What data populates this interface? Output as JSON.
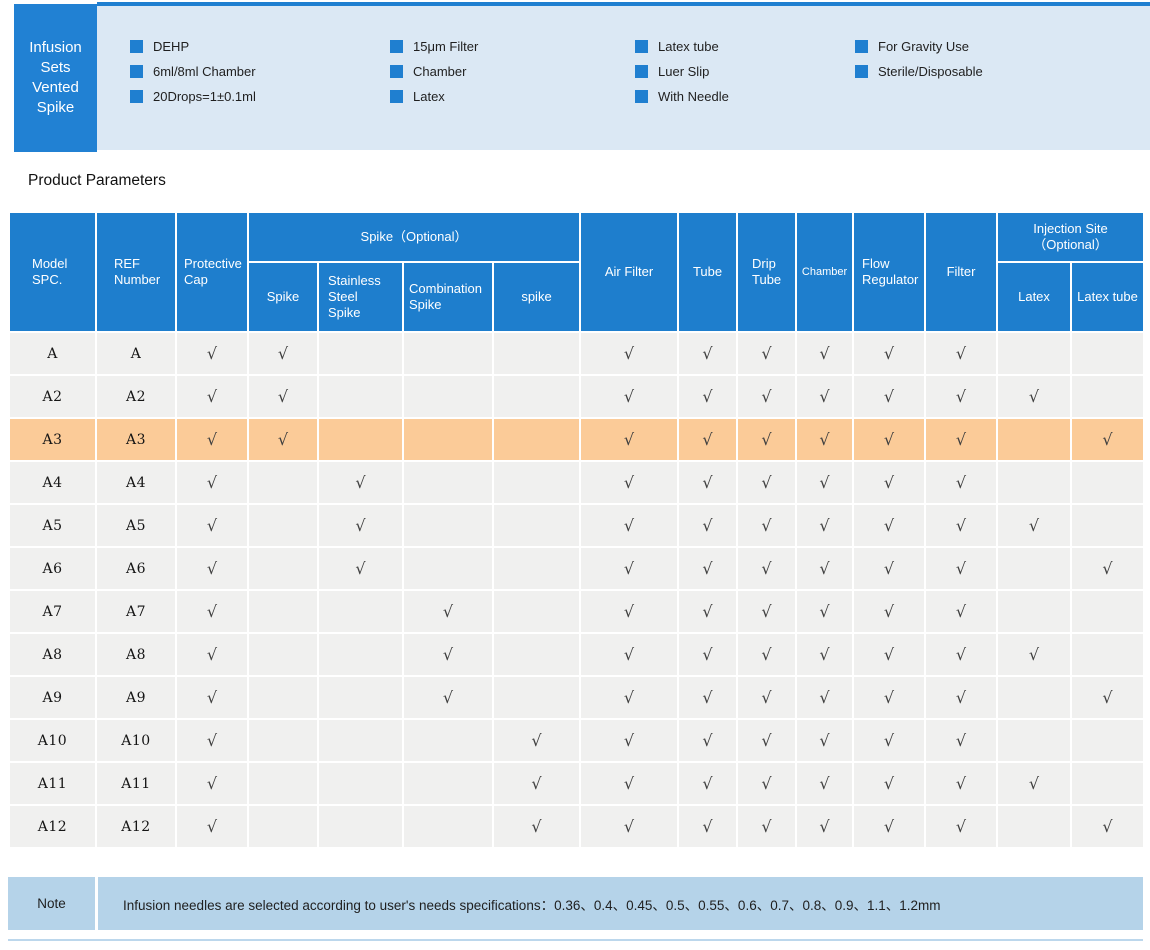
{
  "colors": {
    "accent_blue": "#1e7ecd",
    "banner_box_blue": "#2181d3",
    "band_light_blue": "#dbe8f4",
    "row_gray": "#f0f0ef",
    "highlight_orange": "#fbcb98",
    "note_blue": "#b5d3e9"
  },
  "banner": {
    "title": "Infusion\nSets\nVented\nSpike",
    "feature_columns": [
      {
        "items": [
          "DEHP",
          "6ml/8ml Chamber",
          "20Drops=1±0.1ml"
        ]
      },
      {
        "items": [
          "15μm Filter",
          "Chamber",
          "Latex"
        ]
      },
      {
        "items": [
          "Latex tube",
          "Luer Slip",
          "With Needle"
        ]
      },
      {
        "items": [
          "For Gravity Use",
          "Sterile/Disposable"
        ]
      }
    ]
  },
  "section_title": "Product Parameters",
  "table": {
    "check": "√",
    "headers": {
      "model": "Model\nSPC.",
      "ref": "REF\nNumber",
      "cap": "Protective\nCap",
      "spike_group": "Spike（Optional）",
      "spike": "Spike",
      "ss": "Stainless\nSteel\nSpike",
      "comb": "Combination\nSpike",
      "spk": "spike",
      "air": "Air Filter",
      "tube": "Tube",
      "drip": "Drip\nTube",
      "cham": "Chamber",
      "flow": "Flow\nRegulator",
      "filt": "Filter",
      "inj_group": "Injection Site\n（Optional）",
      "latex": "Latex",
      "ltube": "Latex tube"
    },
    "columns": [
      "model",
      "ref",
      "cap",
      "spike",
      "ss",
      "comb",
      "spk",
      "air",
      "tube",
      "drip",
      "cham",
      "flow",
      "filt",
      "latex",
      "ltube"
    ],
    "rows": [
      {
        "cells": [
          "A",
          "A",
          1,
          1,
          0,
          0,
          0,
          1,
          1,
          1,
          1,
          1,
          1,
          0,
          0
        ],
        "highlight": false
      },
      {
        "cells": [
          "A2",
          "A2",
          1,
          1,
          0,
          0,
          0,
          1,
          1,
          1,
          1,
          1,
          1,
          1,
          0
        ],
        "highlight": false
      },
      {
        "cells": [
          "A3",
          "A3",
          1,
          1,
          0,
          0,
          0,
          1,
          1,
          1,
          1,
          1,
          1,
          0,
          1
        ],
        "highlight": true
      },
      {
        "cells": [
          "A4",
          "A4",
          1,
          0,
          1,
          0,
          0,
          1,
          1,
          1,
          1,
          1,
          1,
          0,
          0
        ],
        "highlight": false
      },
      {
        "cells": [
          "A5",
          "A5",
          1,
          0,
          1,
          0,
          0,
          1,
          1,
          1,
          1,
          1,
          1,
          1,
          0
        ],
        "highlight": false
      },
      {
        "cells": [
          "A6",
          "A6",
          1,
          0,
          1,
          0,
          0,
          1,
          1,
          1,
          1,
          1,
          1,
          0,
          1
        ],
        "highlight": false
      },
      {
        "cells": [
          "A7",
          "A7",
          1,
          0,
          0,
          1,
          0,
          1,
          1,
          1,
          1,
          1,
          1,
          0,
          0
        ],
        "highlight": false
      },
      {
        "cells": [
          "A8",
          "A8",
          1,
          0,
          0,
          1,
          0,
          1,
          1,
          1,
          1,
          1,
          1,
          1,
          0
        ],
        "highlight": false
      },
      {
        "cells": [
          "A9",
          "A9",
          1,
          0,
          0,
          1,
          0,
          1,
          1,
          1,
          1,
          1,
          1,
          0,
          1
        ],
        "highlight": false
      },
      {
        "cells": [
          "A10",
          "A10",
          1,
          0,
          0,
          0,
          1,
          1,
          1,
          1,
          1,
          1,
          1,
          0,
          0
        ],
        "highlight": false
      },
      {
        "cells": [
          "A11",
          "A11",
          1,
          0,
          0,
          0,
          1,
          1,
          1,
          1,
          1,
          1,
          1,
          1,
          0
        ],
        "highlight": false
      },
      {
        "cells": [
          "A12",
          "A12",
          1,
          0,
          0,
          0,
          1,
          1,
          1,
          1,
          1,
          1,
          1,
          0,
          1
        ],
        "highlight": false
      }
    ],
    "note_label": "Note",
    "note_text": "Infusion needles are selected according to user's needs specifications：0.36、0.4、0.45、0.5、0.55、0.6、0.7、0.8、0.9、1.1、1.2mm"
  }
}
